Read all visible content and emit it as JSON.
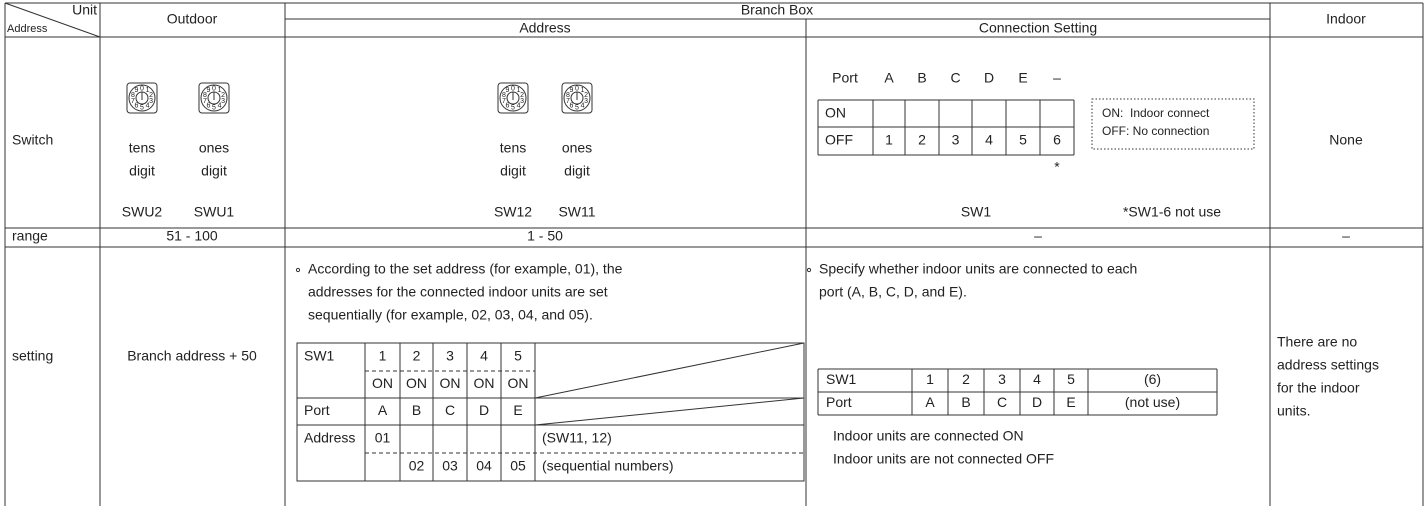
{
  "header": {
    "corner_top": "Unit",
    "corner_bottom": "Address",
    "outdoor": "Outdoor",
    "branch_box": "Branch Box",
    "address": "Address",
    "connection_setting": "Connection Setting",
    "indoor": "Indoor"
  },
  "switch": {
    "label": "Switch",
    "dial_digits": [
      "0",
      "1",
      "2",
      "3",
      "4",
      "5",
      "6",
      "7",
      "8",
      "9"
    ],
    "outdoor": [
      {
        "line1": "tens",
        "line2": "digit",
        "name": "SWU2"
      },
      {
        "line1": "ones",
        "line2": "digit",
        "name": "SWU1"
      }
    ],
    "address": [
      {
        "line1": "tens",
        "line2": "digit",
        "name": "SW12"
      },
      {
        "line1": "ones",
        "line2": "digit",
        "name": "SW11"
      }
    ],
    "connection": {
      "port_label": "Port",
      "ports": [
        "A",
        "B",
        "C",
        "D",
        "E",
        "–"
      ],
      "on": "ON",
      "off": "OFF",
      "numbers": [
        "1",
        "2",
        "3",
        "4",
        "5",
        "6"
      ],
      "asterisk": "*",
      "legend": [
        "ON:  Indoor connect",
        "OFF: No connection"
      ],
      "name": "SW1",
      "note": "*SW1-6 not use"
    },
    "indoor": "None"
  },
  "range": {
    "label": "range",
    "outdoor": "51 - 100",
    "address": "1 - 50",
    "connection": "–",
    "indoor": "–"
  },
  "setting": {
    "label": "setting",
    "outdoor": "Branch address + 50",
    "address": {
      "lines": [
        "According to the set address (for example, 01), the",
        "addresses for the connected indoor units are set",
        "sequentially (for example, 02, 03, 04, and 05)."
      ],
      "table": [
        [
          "SW1",
          "1",
          "2",
          "3",
          "4",
          "5"
        ],
        [
          null,
          "ON",
          "ON",
          "ON",
          "ON",
          "ON"
        ],
        [
          "Port",
          "A",
          "B",
          "C",
          "D",
          "E"
        ],
        [
          "Address",
          "01",
          null,
          null,
          null,
          null,
          "(SW11, 12)"
        ],
        [
          null,
          null,
          "02",
          "03",
          "04",
          "05",
          "(sequential numbers)"
        ]
      ]
    },
    "connection": {
      "lines": [
        "Specify whether indoor units are connected to each",
        "port (A, B, C, D, and E)."
      ],
      "table": [
        [
          "SW1",
          "1",
          "2",
          "3",
          "4",
          "5",
          "(6)"
        ],
        [
          "Port",
          "A",
          "B",
          "C",
          "D",
          "E",
          "(not use)"
        ]
      ],
      "notes": [
        "Indoor units are connected ON",
        "Indoor units are not connected OFF"
      ]
    },
    "indoor": [
      "There are no",
      "address settings",
      "for the indoor",
      "units."
    ]
  }
}
